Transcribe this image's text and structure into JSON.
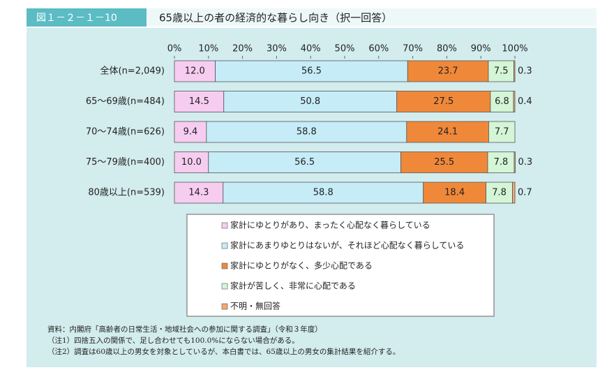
{
  "header": {
    "figure_label": "図１－２－１－10",
    "title": "65歳以上の者の経済的な暮らし向き（択一回答）"
  },
  "chart_data": {
    "type": "stacked-bar-horizontal",
    "categories": [
      "全体(n=2,049)",
      "65～69歳(n=484)",
      "70～74歳(n=626)",
      "75～79歳(n=400)",
      "80歳以上(n=539)"
    ],
    "series": [
      {
        "name": "家計にゆとりがあり、まったく心配なく暮らしている",
        "color": "#f6cdf0",
        "values": [
          12.0,
          14.5,
          9.4,
          10.0,
          14.3
        ],
        "value_labels": [
          "12.0",
          "14.5",
          "9.4",
          "10.0",
          "14.3"
        ]
      },
      {
        "name": "家計にあまりゆとりはないが、それほど心配なく暮らしている",
        "color": "#c6ecf8",
        "values": [
          56.5,
          50.8,
          58.8,
          56.5,
          58.8
        ],
        "value_labels": [
          "56.5",
          "50.8",
          "58.8",
          "56.5",
          "58.8"
        ]
      },
      {
        "name": "家計にゆとりがなく、多少心配である",
        "color": "#f0883a",
        "values": [
          23.7,
          27.5,
          24.1,
          25.5,
          18.4
        ],
        "value_labels": [
          "23.7",
          "27.5",
          "24.1",
          "25.5",
          "18.4"
        ]
      },
      {
        "name": "家計が苦しく、非常に心配である",
        "color": "#d4f5d6",
        "values": [
          7.5,
          6.8,
          7.7,
          7.8,
          7.8
        ],
        "value_labels": [
          "7.5",
          "6.8",
          "7.7",
          "7.8",
          "7.8"
        ]
      },
      {
        "name": "不明・無回答",
        "color": "#f4a870",
        "values": [
          0.3,
          0.4,
          null,
          0.3,
          0.7
        ],
        "value_labels": [
          "0.3",
          "0.4",
          null,
          "0.3",
          "0.7"
        ]
      }
    ],
    "xlim": [
      0,
      100
    ],
    "xticks": [
      {
        "value": 0,
        "label": "0%"
      },
      {
        "value": 10,
        "label": "10%"
      },
      {
        "value": 20,
        "label": "20%"
      },
      {
        "value": 30,
        "label": "30%"
      },
      {
        "value": 40,
        "label": "40%"
      },
      {
        "value": 50,
        "label": "50%"
      },
      {
        "value": 60,
        "label": "60%"
      },
      {
        "value": 70,
        "label": "70%"
      },
      {
        "value": 80,
        "label": "80%"
      },
      {
        "value": 90,
        "label": "90%"
      },
      {
        "value": 100,
        "label": "100%"
      }
    ]
  },
  "notes": [
    "資料：内閣府「高齢者の日常生活・地域社会への参加に関する調査」（令和３年度）",
    "（注1）四捨五入の関係で、足し合わせても100.0%にならない場合がある。",
    "（注2）調査は60歳以上の男女を対象としているが、本白書では、65歳以上の男女の集計結果を紹介する。"
  ]
}
